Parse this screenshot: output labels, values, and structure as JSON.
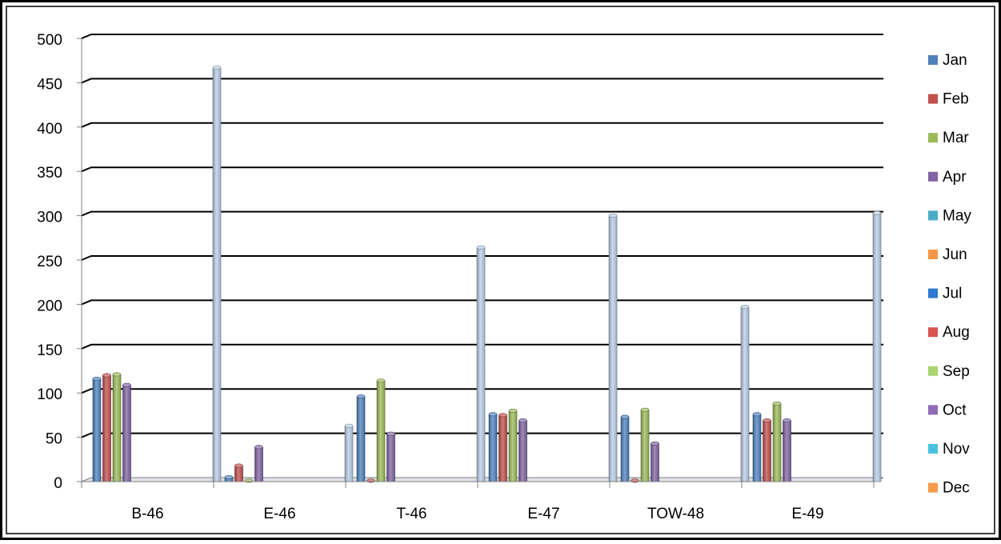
{
  "chart_data": {
    "type": "bar",
    "title": "",
    "xlabel": "",
    "ylabel": "",
    "categories": [
      "B-46",
      "E-46",
      "T-46",
      "E-47",
      "TOW-48",
      "E-49"
    ],
    "ylim": [
      0,
      500
    ],
    "yticks": [
      "0",
      "50",
      "100",
      "150",
      "200",
      "250",
      "300",
      "350",
      "400",
      "450",
      "500"
    ],
    "grid": true,
    "legend_position": "right",
    "series": [
      {
        "name": "Jan",
        "color": "#4F81BD",
        "values": [
          116,
          5,
          96,
          76,
          73,
          76
        ]
      },
      {
        "name": "Feb",
        "color": "#C0504D",
        "values": [
          120,
          18,
          1,
          75,
          1,
          69
        ]
      },
      {
        "name": "Mar",
        "color": "#9BBB59",
        "values": [
          121,
          1,
          114,
          80,
          81,
          88
        ]
      },
      {
        "name": "Apr",
        "color": "#8064A2",
        "values": [
          109,
          39,
          54,
          69,
          43,
          69
        ]
      },
      {
        "name": "May",
        "color": "#4BACC6",
        "values": [
          0,
          0,
          0,
          0,
          0,
          0
        ]
      },
      {
        "name": "Jun",
        "color": "#F79646",
        "values": [
          0,
          0,
          0,
          0,
          0,
          0
        ]
      },
      {
        "name": "Jul",
        "color": "#2C7BD0",
        "values": [
          0,
          0,
          0,
          0,
          0,
          0
        ]
      },
      {
        "name": "Aug",
        "color": "#D9534F",
        "values": [
          0,
          0,
          0,
          0,
          0,
          0
        ]
      },
      {
        "name": "Sep",
        "color": "#A9D46F",
        "values": [
          0,
          0,
          0,
          0,
          0,
          0
        ]
      },
      {
        "name": "Oct",
        "color": "#8E6BB5",
        "values": [
          0,
          0,
          0,
          0,
          0,
          0
        ]
      },
      {
        "name": "Nov",
        "color": "#47C1DF",
        "values": [
          0,
          0,
          0,
          0,
          0,
          0
        ]
      },
      {
        "name": "Dec",
        "color": "#F79B4A",
        "values": [
          0,
          0,
          0,
          0,
          0,
          0
        ]
      },
      {
        "name": "",
        "color": "#B9CDE5",
        "values": [
          467,
          63,
          264,
          300,
          197,
          303
        ]
      }
    ]
  }
}
